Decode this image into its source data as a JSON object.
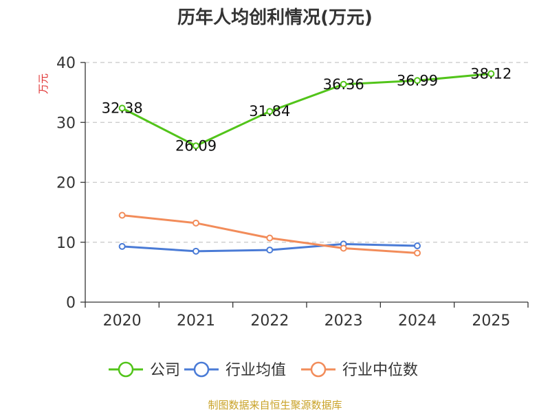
{
  "chart_data": {
    "type": "line",
    "title": "历年人均创利情况(万元)",
    "ylabel": "万元",
    "xlabel": "",
    "categories": [
      "2020",
      "2021",
      "2022",
      "2023",
      "2024",
      "2025"
    ],
    "ylim": [
      0,
      40
    ],
    "yticks": [
      0,
      10,
      20,
      30,
      40
    ],
    "grid": true,
    "legend_position": "bottom",
    "series": [
      {
        "name": "公司",
        "color": "#52c41a",
        "values": [
          32.38,
          26.09,
          31.84,
          36.36,
          36.99,
          38.12
        ],
        "labels": [
          "32.38",
          "26.09",
          "31.84",
          "36.36",
          "36.99",
          "38.12"
        ]
      },
      {
        "name": "行业均值",
        "color": "#4a7bd6",
        "values": [
          9.3,
          8.5,
          8.7,
          9.7,
          9.4,
          null
        ]
      },
      {
        "name": "行业中位数",
        "color": "#f28c5a",
        "values": [
          14.5,
          13.2,
          10.7,
          9.0,
          8.2,
          null
        ]
      }
    ],
    "source": "制图数据来自恒生聚源数据库"
  }
}
